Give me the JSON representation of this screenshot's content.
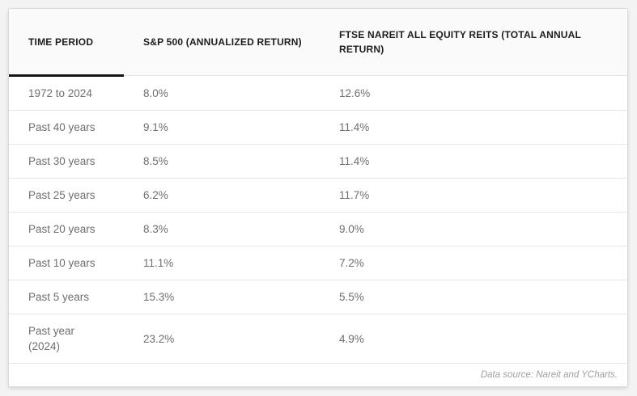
{
  "chart_data": {
    "type": "table",
    "title": "",
    "columns": [
      "TIME PERIOD",
      "S&P 500 (ANNUALIZED RETURN)",
      "FTSE NAREIT ALL EQUITY REITS (TOTAL ANNUAL RETURN)"
    ],
    "categories": [
      "1972 to 2024",
      "Past 40 years",
      "Past 30 years",
      "Past 25 years",
      "Past 20 years",
      "Past 10 years",
      "Past 5 years",
      "Past year (2024)"
    ],
    "series": [
      {
        "name": "S&P 500 (Annualized Return)",
        "values": [
          8.0,
          9.1,
          8.5,
          6.2,
          8.3,
          11.1,
          15.3,
          23.2
        ],
        "unit": "%"
      },
      {
        "name": "FTSE Nareit All Equity REITs (Total Annual Return)",
        "values": [
          12.6,
          11.4,
          11.4,
          11.7,
          9.0,
          7.2,
          5.5,
          4.9
        ],
        "unit": "%"
      }
    ],
    "rows": [
      [
        "1972 to 2024",
        "8.0%",
        "12.6%"
      ],
      [
        "Past 40 years",
        "9.1%",
        "11.4%"
      ],
      [
        "Past 30 years",
        "8.5%",
        "11.4%"
      ],
      [
        "Past 25 years",
        "6.2%",
        "11.7%"
      ],
      [
        "Past 20 years",
        "8.3%",
        "9.0%"
      ],
      [
        "Past 10 years",
        "11.1%",
        "7.2%"
      ],
      [
        "Past 5 years",
        "15.3%",
        "5.5%"
      ],
      [
        "Past year (2024)",
        "23.2%",
        "4.9%"
      ]
    ],
    "note": "Data source: Nareit and YCharts."
  },
  "colors": {
    "page_background": "#f3f3f3",
    "card_background": "#ffffff",
    "header_background": "#fafafa",
    "header_text": "#1d1d1d",
    "header_accent_underline": "#151515",
    "body_text": "#6f6f6f",
    "row_divider": "#e6e6e6",
    "footer_text": "#9e9e9e"
  }
}
